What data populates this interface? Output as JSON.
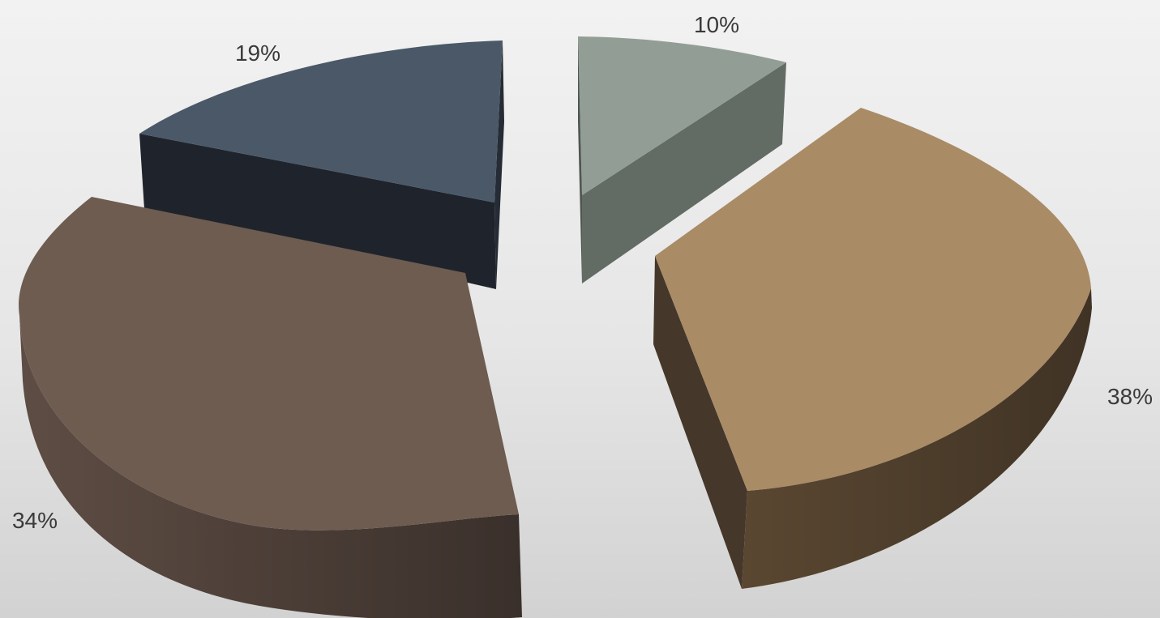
{
  "chart_data": {
    "type": "pie",
    "style": "3d-exploded",
    "title": "",
    "slices": [
      {
        "label": "10%",
        "value": 10,
        "color": "#929e95",
        "side_color": "#626b64"
      },
      {
        "label": "38%",
        "value": 38,
        "color": "#a98b66",
        "side_color": "#45372a"
      },
      {
        "label": "34%",
        "value": 34,
        "color": "#6e5c51",
        "side_color": "#4a3c34"
      },
      {
        "label": "19%",
        "value": 19,
        "color": "#4a5868",
        "side_color": "#1f242c"
      }
    ],
    "legend": "none"
  }
}
